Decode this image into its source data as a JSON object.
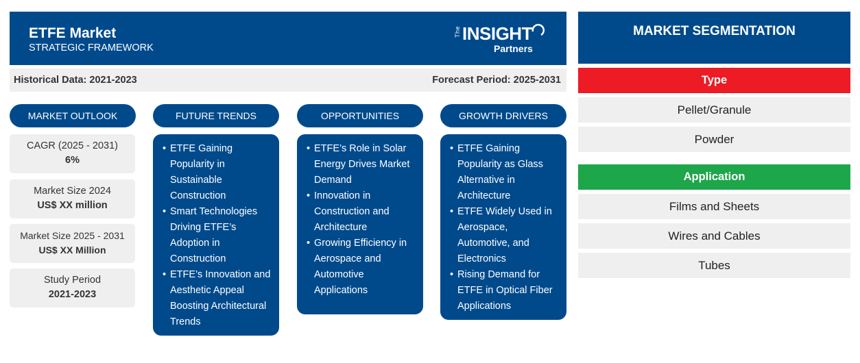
{
  "header": {
    "title": "ETFE Market",
    "subtitle": "STRATEGIC FRAMEWORK",
    "logo": {
      "prefix": "The",
      "word": "INSIGHT",
      "suffix": "Partners"
    }
  },
  "periods": {
    "historical": "Historical Data: 2021-2023",
    "forecast": "Forecast Period: 2025-2031"
  },
  "columns": {
    "outlook": "MARKET OUTLOOK",
    "trends": "FUTURE TRENDS",
    "opportunities": "OPPORTUNITIES",
    "drivers": "GROWTH DRIVERS"
  },
  "outlook": [
    {
      "label": "CAGR (2025 - 2031)",
      "value": "6%"
    },
    {
      "label": "Market Size 2024",
      "value": "US$ XX million"
    },
    {
      "label": "Market Size 2025 - 2031",
      "value": "US$ XX Million"
    },
    {
      "label": "Study Period",
      "value": "2021-2023"
    }
  ],
  "trends": [
    "ETFE Gaining Popularity in Sustainable Construction",
    "Smart Technologies Driving ETFE’s Adoption in Construction",
    "ETFE’s Innovation and Aesthetic Appeal Boosting Architectural Trends"
  ],
  "opportunities": [
    "ETFE’s Role in Solar Energy Drives Market Demand",
    "Innovation in Construction and Architecture",
    "Growing Efficiency in Aerospace and Automotive Applications"
  ],
  "drivers": [
    "ETFE Gaining Popularity as Glass Alternative in Architecture",
    "ETFE Widely Used in Aerospace, Automotive, and Electronics",
    "Rising Demand for ETFE in Optical Fiber Applications"
  ],
  "segmentation": {
    "title": "MARKET SEGMENTATION",
    "type": {
      "label": "Type",
      "color": "#ed1c24",
      "items": [
        "Pellet/Granule",
        "Powder"
      ]
    },
    "application": {
      "label": "Application",
      "color": "#1ea64a",
      "items": [
        "Films and Sheets",
        "Wires and Cables",
        "Tubes"
      ]
    }
  },
  "colors": {
    "primary": "#004a8c",
    "panel": "#efefef"
  }
}
